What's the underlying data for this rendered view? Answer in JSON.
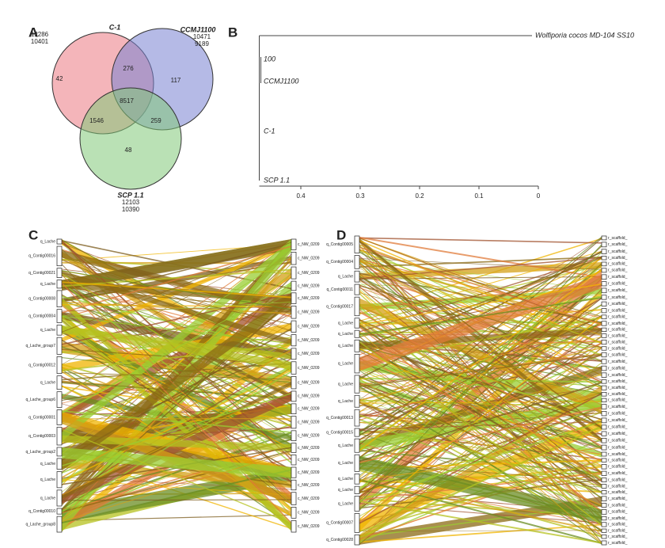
{
  "venn": {
    "label": "A",
    "sets": [
      {
        "name": "C-1",
        "totals": [
          12286,
          10401
        ]
      },
      {
        "name": "CCMJ1100",
        "totals": [
          10471,
          9189
        ]
      },
      {
        "name": "SCP 1.1",
        "totals": [
          12103,
          10390
        ]
      }
    ],
    "regions": [
      42,
      276,
      117,
      8517,
      1546,
      259,
      48
    ]
  },
  "tree": {
    "label": "B",
    "outgroup": "Wolfiporia cocos MD-104 SS10",
    "support": 100,
    "leaves": [
      "CCMJ1100",
      "C-1",
      "SCP 1.1"
    ],
    "xlim": [
      0.47,
      0
    ],
    "xticks": [
      0.4,
      0.3,
      0.2,
      0.1,
      0
    ]
  },
  "synteny_c": {
    "label": "C",
    "query": [
      "q_Lache",
      "q_Contig00016",
      "q_Contig00021",
      "q_Lache",
      "q_Contig00008",
      "q_Contig00004",
      "q_Lache",
      "q_Lache_group7",
      "q_Contig00012",
      "q_Lache",
      "q_Lache_group6",
      "q_Contig00001",
      "q_Contig00003",
      "q_Lache_group2",
      "q_Lache",
      "q_Lache",
      "q_Lache",
      "q_Contig00010",
      "q_Lache_group8"
    ],
    "reference": [
      "c_NW_0209",
      "c_NW_0209",
      "c_NW_0209",
      "c_NW_0209",
      "c_NW_0209",
      "c_NW_0209",
      "c_NW_0209",
      "c_NW_0209",
      "c_NW_0209",
      "c_NW_0209",
      "c_NW_0209",
      "c_NW_0209",
      "c_NW_0209",
      "c_NW_0209",
      "c_NW_0209",
      "c_NW_0209",
      "c_NW_0209",
      "c_NW_0209",
      "c_NW_0209",
      "c_NW_0209",
      "c_NW_0209",
      "c_NW_0209"
    ]
  },
  "synteny_d": {
    "label": "D",
    "query": [
      "q_Contig00005",
      "q_Contig00004",
      "q_Lache",
      "q_Contig00011",
      "q_Contig00017",
      "q_Lache",
      "q_Lache",
      "q_Lache",
      "q_Lache",
      "q_Lache",
      "q_Lache",
      "q_Contig00013",
      "q_Contig00015",
      "q_Lache",
      "q_Lache",
      "q_Lache",
      "q_Lache",
      "q_Lache",
      "q_Contig00007",
      "q_Contig00028"
    ],
    "reference": [
      "r_scaffold_",
      "r_scaffold_",
      "r_scaffold_",
      "r_scaffold_",
      "r_scaffold_",
      "r_scaffold_",
      "r_scaffold_",
      "r_scaffold_",
      "r_scaffold_",
      "r_scaffold_",
      "r_scaffold_",
      "r_scaffold_",
      "r_scaffold_",
      "r_scaffold_",
      "r_scaffold_",
      "r_scaffold_",
      "r_scaffold_",
      "r_scaffold_",
      "r_scaffold_",
      "r_scaffold_",
      "r_scaffold_",
      "r_scaffold_",
      "r_scaffold_",
      "r_scaffold_",
      "r_scaffold_",
      "r_scaffold_",
      "r_scaffold_",
      "r_scaffold_",
      "r_scaffold_",
      "r_scaffold_",
      "r_scaffold_",
      "r_scaffold_",
      "r_scaffold_",
      "r_scaffold_",
      "r_scaffold_",
      "r_scaffold_",
      "r_scaffold_",
      "r_scaffold_",
      "r_scaffold_",
      "r_scaffold_",
      "r_scaffold_",
      "r_scaffold_",
      "r_scaffold_",
      "r_scaffold_",
      "r_scaffold_",
      "r_scaffold_",
      "r_scaffold_",
      "r_scaffold_"
    ]
  }
}
